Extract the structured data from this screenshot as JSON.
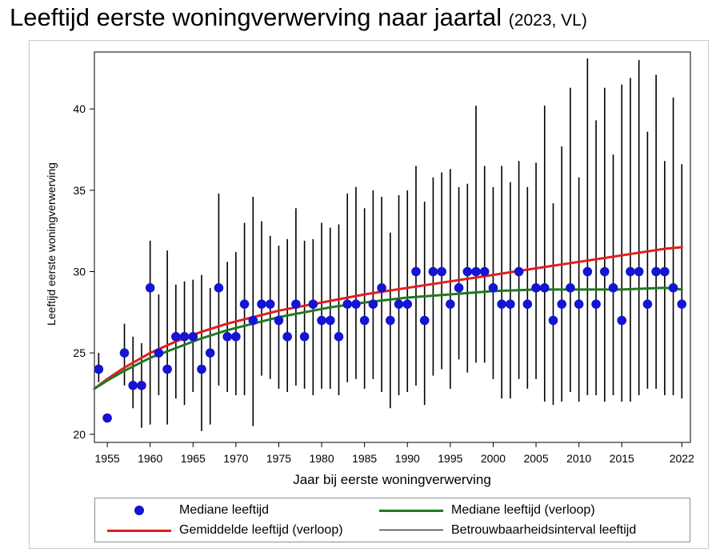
{
  "title": {
    "main": "Leeftijd eerste woningverwerving naar jaartal",
    "sub": "(2023, VL)"
  },
  "colors": {
    "median_dots": "#1414d2",
    "mean_curve": "#e01e1e",
    "median_curve": "#1f7a1f",
    "ci_bars": "#000000"
  },
  "chart_data": {
    "type": "scatter",
    "xlabel": "Jaar bij eerste woningverwerving",
    "ylabel": "Leeftijd eerste woningverwerving",
    "xlim": [
      1953.5,
      2023
    ],
    "ylim": [
      19.5,
      43.5
    ],
    "x_ticks": [
      1955,
      1960,
      1965,
      1970,
      1975,
      1980,
      1985,
      1990,
      1995,
      2000,
      2005,
      2010,
      2015,
      2022
    ],
    "y_ticks": [
      20,
      25,
      30,
      35,
      40
    ],
    "grid": false,
    "legend_position": "bottom",
    "series": [
      {
        "name": "Mediane leeftijd",
        "kind": "points",
        "x": [
          1954,
          1955,
          1957,
          1958,
          1959,
          1960,
          1961,
          1962,
          1963,
          1964,
          1965,
          1966,
          1967,
          1968,
          1969,
          1970,
          1971,
          1972,
          1973,
          1974,
          1975,
          1976,
          1977,
          1978,
          1979,
          1980,
          1981,
          1982,
          1983,
          1984,
          1985,
          1986,
          1987,
          1988,
          1989,
          1990,
          1991,
          1992,
          1993,
          1994,
          1995,
          1996,
          1997,
          1998,
          1999,
          2000,
          2001,
          2002,
          2003,
          2004,
          2005,
          2006,
          2007,
          2008,
          2009,
          2010,
          2011,
          2012,
          2013,
          2014,
          2015,
          2016,
          2017,
          2018,
          2019,
          2020,
          2021,
          2022
        ],
        "y": [
          24,
          21,
          25,
          23,
          23,
          29,
          25,
          24,
          26,
          26,
          26,
          24,
          25,
          29,
          26,
          26,
          28,
          27,
          28,
          28,
          27,
          26,
          28,
          26,
          28,
          27,
          27,
          26,
          28,
          28,
          27,
          28,
          29,
          27,
          28,
          28,
          30,
          27,
          30,
          30,
          28,
          29,
          30,
          30,
          30,
          29,
          28,
          28,
          30,
          28,
          29,
          29,
          27,
          28,
          29,
          28,
          30,
          28,
          30,
          29,
          27,
          30,
          30,
          28,
          30,
          30,
          29,
          28
        ]
      },
      {
        "name": "Betrouwbaarheidsinterval leeftijd",
        "kind": "interval",
        "x": [
          1954,
          1957,
          1958,
          1959,
          1960,
          1961,
          1962,
          1963,
          1964,
          1965,
          1966,
          1967,
          1968,
          1969,
          1970,
          1971,
          1972,
          1973,
          1974,
          1975,
          1976,
          1977,
          1978,
          1979,
          1980,
          1981,
          1982,
          1983,
          1984,
          1985,
          1986,
          1987,
          1988,
          1989,
          1990,
          1991,
          1992,
          1993,
          1994,
          1995,
          1996,
          1997,
          1998,
          1999,
          2000,
          2001,
          2002,
          2003,
          2004,
          2005,
          2006,
          2007,
          2008,
          2009,
          2010,
          2011,
          2012,
          2013,
          2014,
          2015,
          2016,
          2017,
          2018,
          2019,
          2020,
          2021,
          2022
        ],
        "low": [
          23.2,
          23.0,
          21.6,
          20.4,
          20.6,
          22.4,
          20.6,
          22.2,
          21.8,
          22.6,
          20.2,
          20.6,
          23.0,
          22.6,
          22.4,
          22.4,
          20.5,
          23.6,
          23.4,
          22.8,
          22.6,
          23.0,
          22.8,
          22.4,
          22.8,
          22.8,
          22.4,
          23.2,
          23.4,
          22.8,
          23.4,
          22.6,
          21.6,
          22.4,
          22.6,
          23.0,
          21.8,
          23.6,
          24.0,
          22.8,
          24.6,
          23.8,
          24.4,
          24.4,
          23.4,
          22.2,
          22.2,
          23.4,
          22.8,
          23.4,
          22.0,
          21.8,
          22.0,
          22.6,
          22.0,
          22.4,
          22.4,
          22.0,
          22.4,
          22.0,
          22.0,
          22.4,
          22.8,
          22.8,
          22.4,
          22.4,
          22.2
        ],
        "high": [
          25.0,
          26.8,
          26.0,
          25.6,
          31.9,
          28.6,
          31.3,
          29.2,
          29.4,
          29.5,
          29.8,
          29.0,
          34.8,
          30.6,
          31.2,
          33.0,
          34.6,
          33.1,
          32.2,
          31.6,
          32.0,
          33.9,
          31.9,
          32.0,
          33.0,
          32.7,
          32.9,
          34.8,
          35.2,
          33.9,
          35.0,
          34.6,
          32.4,
          34.7,
          35.0,
          36.5,
          34.3,
          35.8,
          36.1,
          36.3,
          35.2,
          35.4,
          40.2,
          36.5,
          35.2,
          36.5,
          35.5,
          36.8,
          35.2,
          36.7,
          40.2,
          34.2,
          37.7,
          41.3,
          35.8,
          43.1,
          39.3,
          41.3,
          37.2,
          41.5,
          41.9,
          43.0,
          38.6,
          42.1,
          36.8,
          40.7,
          36.6
        ]
      },
      {
        "name": "Gemiddelde leeftijd (verloop)",
        "kind": "curve",
        "x": [
          1953.5,
          1955,
          1957,
          1960,
          1963,
          1966,
          1969,
          1972,
          1975,
          1978,
          1981,
          1985,
          1990,
          1995,
          2000,
          2005,
          2010,
          2015,
          2020,
          2022
        ],
        "y": [
          22.8,
          23.4,
          24.1,
          25.0,
          25.7,
          26.3,
          26.8,
          27.2,
          27.6,
          27.9,
          28.2,
          28.6,
          29.0,
          29.4,
          29.8,
          30.2,
          30.6,
          31.0,
          31.4,
          31.5
        ]
      },
      {
        "name": "Mediane leeftijd (verloop)",
        "kind": "curve",
        "x": [
          1953.5,
          1955,
          1957,
          1960,
          1963,
          1966,
          1969,
          1972,
          1975,
          1978,
          1981,
          1985,
          1990,
          1995,
          2000,
          2005,
          2010,
          2015,
          2020,
          2022
        ],
        "y": [
          22.8,
          23.3,
          23.9,
          24.7,
          25.3,
          25.9,
          26.4,
          26.8,
          27.2,
          27.5,
          27.8,
          28.1,
          28.4,
          28.6,
          28.8,
          28.9,
          28.9,
          28.9,
          29.0,
          28.9
        ]
      }
    ]
  },
  "legend": [
    {
      "label": "Mediane leeftijd",
      "symbol": "dot"
    },
    {
      "label": "Mediane leeftijd (verloop)",
      "symbol": "green-line"
    },
    {
      "label": "Gemiddelde leeftijd (verloop)",
      "symbol": "red-line"
    },
    {
      "label": "Betrouwbaarheidsinterval leeftijd",
      "symbol": "black-line"
    }
  ]
}
